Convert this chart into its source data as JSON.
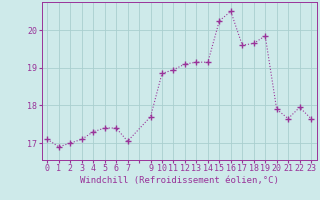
{
  "x": [
    0,
    1,
    2,
    3,
    4,
    5,
    6,
    7,
    9,
    10,
    11,
    12,
    13,
    14,
    15,
    16,
    17,
    18,
    19,
    20,
    21,
    22,
    23
  ],
  "y": [
    17.1,
    16.9,
    17.0,
    17.1,
    17.3,
    17.4,
    17.4,
    17.05,
    17.7,
    18.85,
    18.95,
    19.1,
    19.15,
    19.15,
    20.25,
    20.5,
    19.6,
    19.65,
    19.85,
    17.9,
    17.65,
    17.95,
    17.65
  ],
  "line_color": "#993399",
  "marker": "+",
  "marker_size": 4.0,
  "marker_linewidth": 1.0,
  "line_width": 0.8,
  "bg_color": "#ceeaea",
  "grid_color": "#aacfcf",
  "xlabel": "Windchill (Refroidissement éolien,°C)",
  "xlabel_color": "#993399",
  "xlabel_fontsize": 6.5,
  "tick_color": "#993399",
  "tick_fontsize": 6.0,
  "ylim": [
    16.55,
    20.75
  ],
  "xlim": [
    -0.5,
    23.5
  ],
  "yticks": [
    17,
    18,
    19,
    20
  ],
  "xtick_labels": [
    "0",
    "1",
    "2",
    "3",
    "4",
    "5",
    "6",
    "7",
    "",
    "9",
    "10",
    "11",
    "12",
    "13",
    "14",
    "15",
    "16",
    "17",
    "18",
    "19",
    "20",
    "21",
    "22",
    "23"
  ]
}
